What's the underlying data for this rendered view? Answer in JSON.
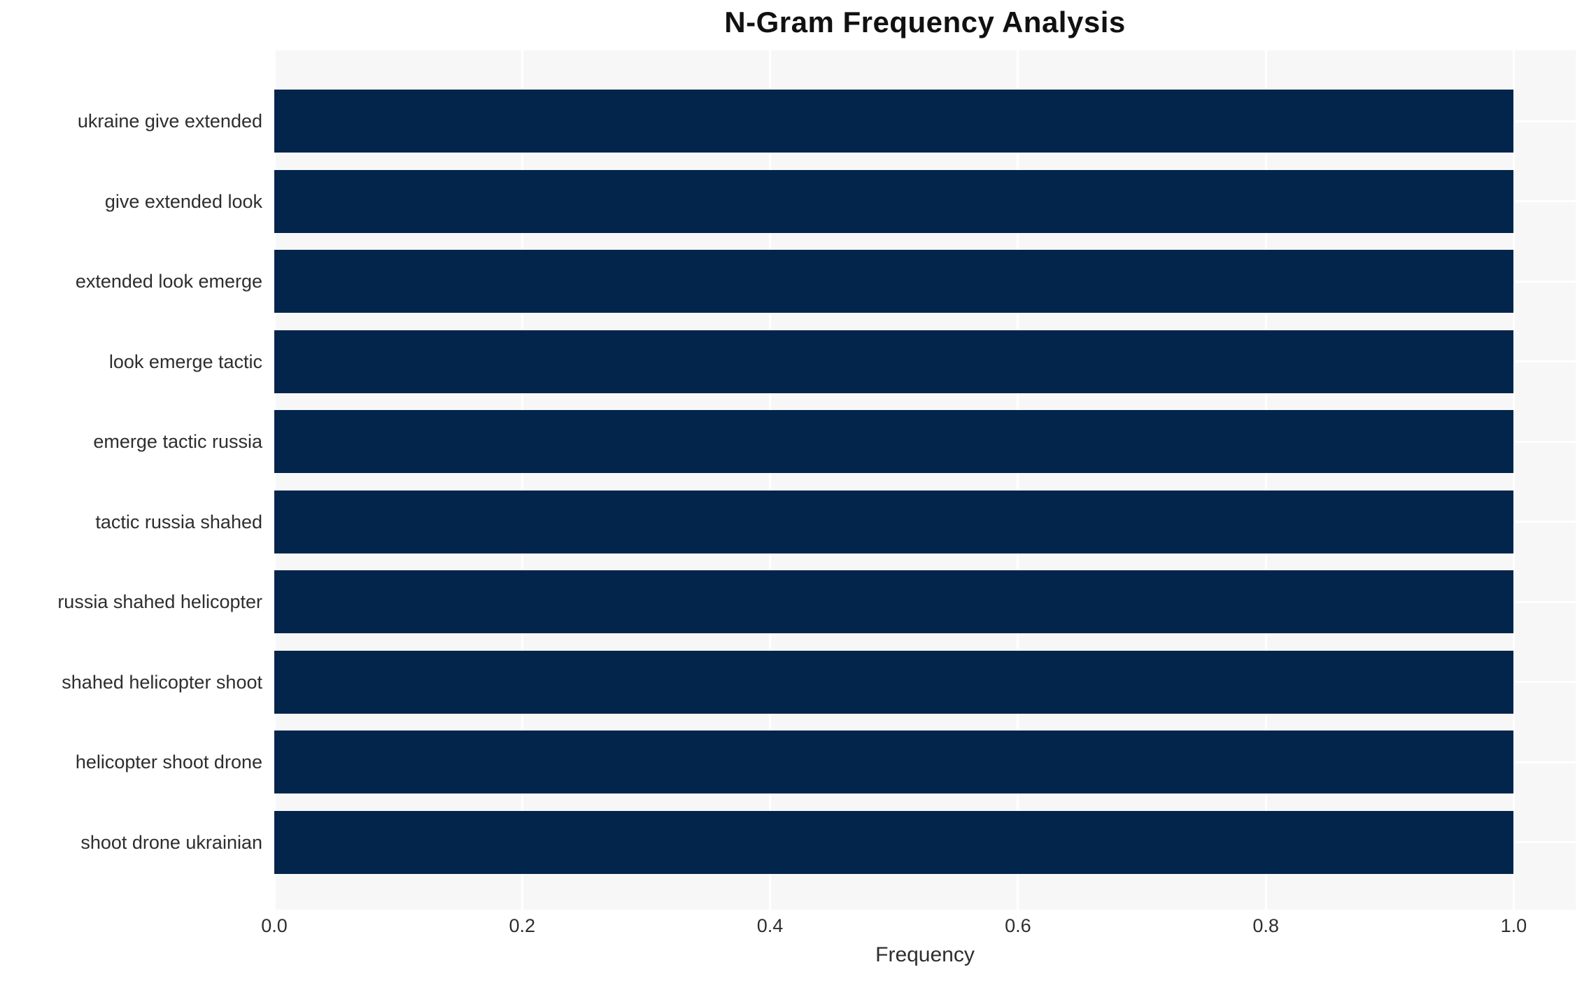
{
  "chart_data": {
    "type": "bar",
    "orientation": "horizontal",
    "title": "N-Gram Frequency Analysis",
    "xlabel": "Frequency",
    "ylabel": "",
    "categories": [
      "ukraine give extended",
      "give extended look",
      "extended look emerge",
      "look emerge tactic",
      "emerge tactic russia",
      "tactic russia shahed",
      "russia shahed helicopter",
      "shahed helicopter shoot",
      "helicopter shoot drone",
      "shoot drone ukrainian"
    ],
    "values": [
      1.0,
      1.0,
      1.0,
      1.0,
      1.0,
      1.0,
      1.0,
      1.0,
      1.0,
      1.0
    ],
    "xlim": [
      0,
      1.05
    ],
    "xticks": [
      0.0,
      0.2,
      0.4,
      0.6,
      0.8,
      1.0
    ],
    "xtick_labels": [
      "0.0",
      "0.2",
      "0.4",
      "0.6",
      "0.8",
      "1.0"
    ],
    "grid": true,
    "legend": false,
    "bar_color": "#03254c",
    "plot_bg_color": "#f7f7f8",
    "grid_color": "#ffffff",
    "text_color": "#2e2e2e",
    "title_color": "#111111"
  }
}
